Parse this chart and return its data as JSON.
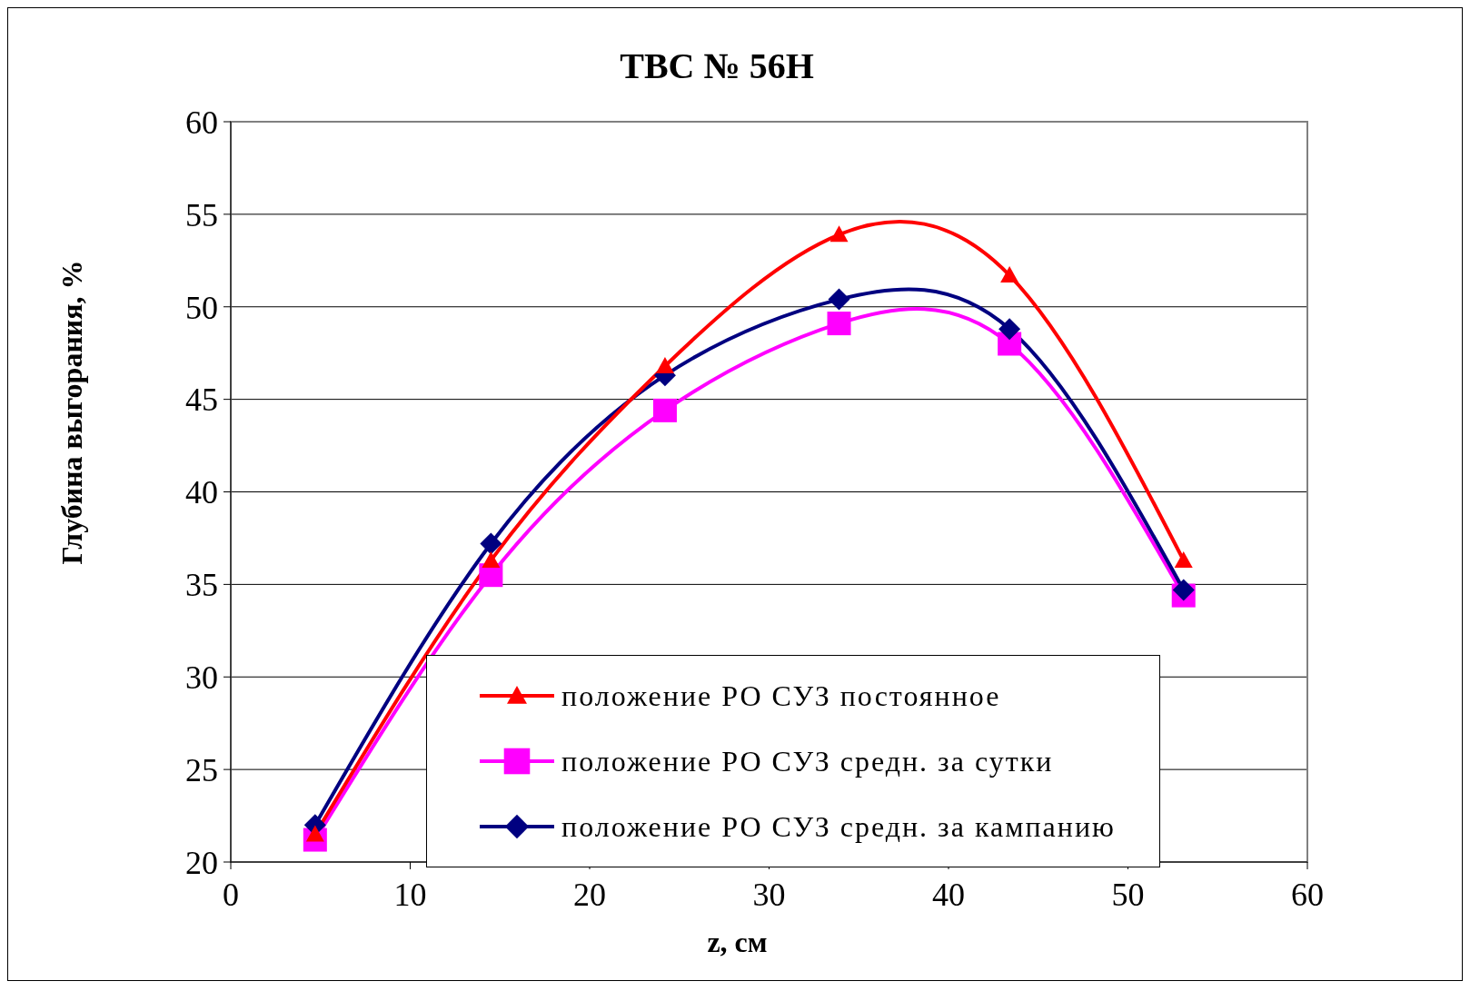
{
  "chart_data": {
    "type": "line",
    "title": "ТВС № 56Н",
    "xlabel": "z, см",
    "ylabel": "Глубина выгорания, %",
    "x": [
      4.7,
      14.5,
      24.2,
      33.9,
      43.4,
      53.1
    ],
    "series": [
      {
        "name": "положение РО СУЗ постоянное",
        "color": "#ff0000",
        "marker": "triangle",
        "values": [
          21.5,
          36.3,
          46.8,
          53.9,
          51.7,
          36.3
        ]
      },
      {
        "name": "положение РО СУЗ средн. за сутки",
        "color": "#ff00ff",
        "marker": "square",
        "values": [
          21.2,
          35.5,
          44.4,
          49.1,
          48.0,
          34.4
        ]
      },
      {
        "name": "положение РО СУЗ средн. за кампанию",
        "color": "#000080",
        "marker": "diamond",
        "values": [
          22.0,
          37.2,
          46.3,
          50.4,
          48.8,
          34.7
        ]
      }
    ],
    "xlim": [
      0,
      60
    ],
    "xticks": [
      0,
      10,
      20,
      30,
      40,
      50,
      60
    ],
    "ylim": [
      20,
      60
    ],
    "yticks": [
      20,
      25,
      30,
      35,
      40,
      45,
      50,
      55,
      60
    ],
    "grid": "y",
    "legend": "bottom",
    "line_style": "solid"
  }
}
